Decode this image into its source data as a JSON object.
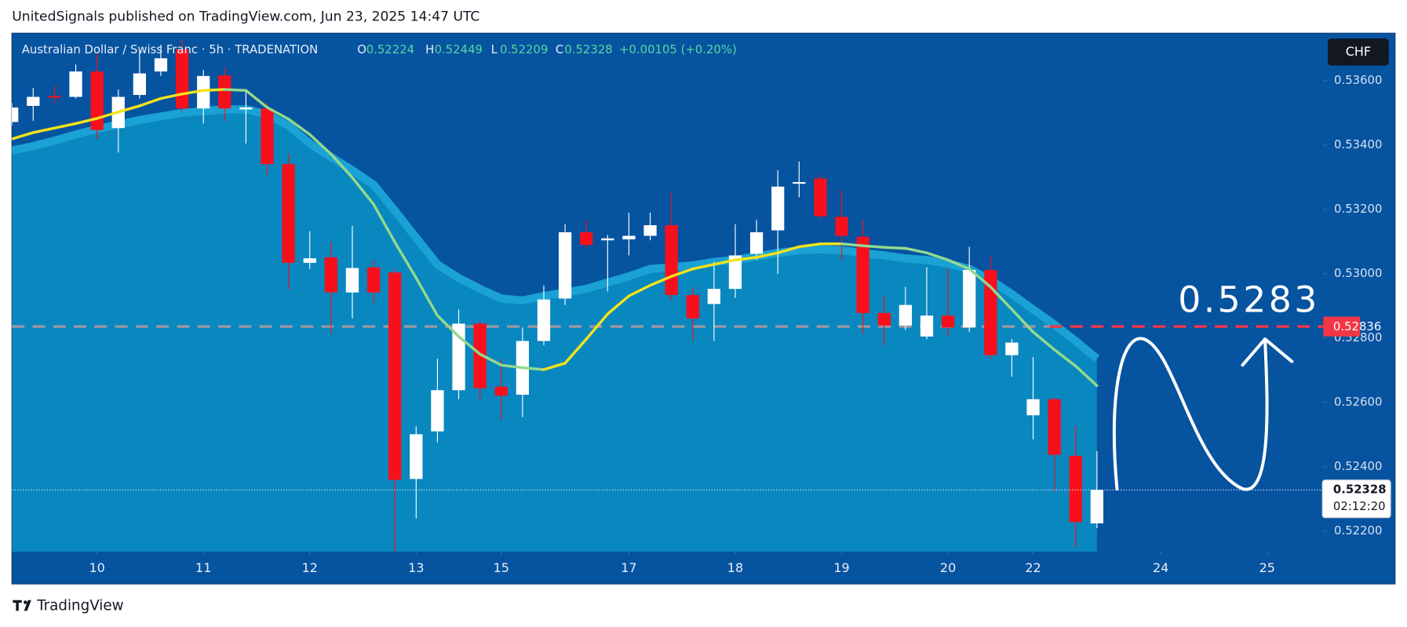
{
  "header": {
    "text": "UnitedSignals published on TradingView.com, Jun 23, 2025 14:47 UTC"
  },
  "footer": {
    "brand": "TradingView"
  },
  "chart_data": {
    "type": "candlestick",
    "symbol": "Australian Dollar / Swiss Franc · 5h · TRADENATION",
    "ohlc_labels": {
      "open": "O",
      "high": "H",
      "low": "L",
      "close": "C"
    },
    "change_label": "+0.00105 (+0.20%)",
    "currency": "CHF",
    "open": [
      0.53472,
      0.53522,
      0.53553,
      0.5355,
      0.53629,
      0.53453,
      0.53556,
      0.53629,
      0.53698,
      0.53514,
      0.53617,
      0.53511,
      0.53514,
      0.53341,
      0.53034,
      0.53051,
      0.52942,
      0.5302,
      0.53004,
      0.52362,
      0.5251,
      0.52638,
      0.52845,
      0.52649,
      0.52624,
      0.52791,
      0.52923,
      0.53129,
      0.53104,
      0.53107,
      0.53118,
      0.53151,
      0.52934,
      0.52906,
      0.52953,
      0.53062,
      0.53135,
      0.5328,
      0.53296,
      0.53177,
      0.53115,
      0.52878,
      0.52839,
      0.52805,
      0.5287,
      0.52833,
      0.53012,
      0.52747,
      0.5256,
      0.5261,
      0.52434,
      0.52224
    ],
    "close": [
      0.53517,
      0.5355,
      0.53548,
      0.53629,
      0.53447,
      0.5355,
      0.53623,
      0.5367,
      0.53514,
      0.53615,
      0.53514,
      0.53517,
      0.53341,
      0.53034,
      0.53048,
      0.52942,
      0.53018,
      0.52942,
      0.52359,
      0.52501,
      0.52638,
      0.52845,
      0.52644,
      0.52621,
      0.52791,
      0.5292,
      0.53129,
      0.5309,
      0.5311,
      0.53118,
      0.53151,
      0.52934,
      0.52861,
      0.52953,
      0.53057,
      0.53129,
      0.53271,
      0.53285,
      0.53179,
      0.53118,
      0.52878,
      0.52839,
      0.52903,
      0.5287,
      0.52833,
      0.53012,
      0.52747,
      0.52786,
      0.5261,
      0.52437,
      0.52228,
      0.52328
    ],
    "high": [
      0.53531,
      0.53578,
      0.53587,
      0.53651,
      0.53684,
      0.53573,
      0.53698,
      0.53712,
      0.53726,
      0.53634,
      0.53642,
      0.53573,
      0.53531,
      0.53372,
      0.53132,
      0.53098,
      0.53149,
      0.53043,
      0.53015,
      0.52526,
      0.52736,
      0.52889,
      0.52853,
      0.52736,
      0.52833,
      0.52964,
      0.53154,
      0.53168,
      0.53121,
      0.5319,
      0.5319,
      0.53252,
      0.52959,
      0.53037,
      0.53154,
      0.53168,
      0.53322,
      0.53349,
      0.53308,
      0.5326,
      0.53168,
      0.52931,
      0.52959,
      0.5302,
      0.53015,
      0.53084,
      0.53057,
      0.52797,
      0.52741,
      0.52616,
      0.52526,
      0.52449
    ],
    "low": [
      0.53461,
      0.53475,
      0.53531,
      0.53545,
      0.53419,
      0.53377,
      0.53545,
      0.53615,
      0.53503,
      0.53467,
      0.53475,
      0.53405,
      0.53308,
      0.52951,
      0.53015,
      0.52814,
      0.52861,
      0.52909,
      0.52136,
      0.52239,
      0.52476,
      0.5261,
      0.5261,
      0.52546,
      0.52554,
      0.52778,
      0.52903,
      0.53079,
      0.52945,
      0.53057,
      0.53104,
      0.52917,
      0.52791,
      0.52791,
      0.52925,
      0.53043,
      0.52999,
      0.53238,
      0.53171,
      0.53043,
      0.52814,
      0.52778,
      0.52825,
      0.52797,
      0.52805,
      0.52819,
      0.52736,
      0.5268,
      0.52485,
      0.52323,
      0.5215,
      0.52209
    ],
    "up_color": "#ffffff",
    "down_color": "#f7101c",
    "series": [
      {
        "type": "line",
        "color_up": "#f3e219",
        "color_down": "#92d98c",
        "values": [
          0.53419,
          0.53439,
          0.53453,
          0.53467,
          0.53483,
          0.53503,
          0.53522,
          0.53545,
          0.53559,
          0.5357,
          0.53573,
          0.5357,
          0.53517,
          0.53481,
          0.53433,
          0.53372,
          0.53299,
          0.53216,
          0.53098,
          0.52987,
          0.5287,
          0.52805,
          0.5275,
          0.52716,
          0.52708,
          0.52702,
          0.52722,
          0.52797,
          0.52875,
          0.52931,
          0.52964,
          0.52992,
          0.53015,
          0.53029,
          0.53043,
          0.53051,
          0.53065,
          0.53084,
          0.53093,
          0.53093,
          0.53087,
          0.53082,
          0.53079,
          0.53065,
          0.53043,
          0.53015,
          0.52959,
          0.52889,
          0.52819,
          0.52764,
          0.52713,
          0.52652
        ]
      },
      {
        "type": "area",
        "color": "#0987bf",
        "edge_color": "#1aa2d4",
        "values": [
          0.53383,
          0.53397,
          0.53414,
          0.53433,
          0.5345,
          0.53464,
          0.53478,
          0.53489,
          0.535,
          0.53506,
          0.53511,
          0.53511,
          0.53495,
          0.53461,
          0.53405,
          0.53363,
          0.53322,
          0.53277,
          0.53196,
          0.53112,
          0.53029,
          0.52987,
          0.52953,
          0.52923,
          0.52917,
          0.52931,
          0.52942,
          0.52953,
          0.52973,
          0.52992,
          0.53015,
          0.5302,
          0.53026,
          0.53037,
          0.53043,
          0.53054,
          0.53065,
          0.53073,
          0.53076,
          0.53073,
          0.53065,
          0.53057,
          0.53048,
          0.53043,
          0.53032,
          0.53015,
          0.52981,
          0.52937,
          0.52889,
          0.52842,
          0.52791,
          0.52736
        ]
      }
    ],
    "ylim": [
      0.52136,
      0.53748
    ],
    "yticks": [
      {
        "value": 0.522,
        "label": "0.52200"
      },
      {
        "value": 0.524,
        "label": "0.52400"
      },
      {
        "value": 0.526,
        "label": "0.52600"
      },
      {
        "value": 0.528,
        "label": "0.52800"
      },
      {
        "value": 0.53,
        "label": "0.53000"
      },
      {
        "value": 0.532,
        "label": "0.53200"
      },
      {
        "value": 0.534,
        "label": "0.53400"
      },
      {
        "value": 0.536,
        "label": "0.53600"
      }
    ],
    "xlim": [
      0,
      61.64
    ],
    "xticks": [
      {
        "value": 4,
        "label": "10"
      },
      {
        "value": 9,
        "label": "11"
      },
      {
        "value": 14,
        "label": "12"
      },
      {
        "value": 19,
        "label": "13"
      },
      {
        "value": 23,
        "label": "15"
      },
      {
        "value": 29,
        "label": "17"
      },
      {
        "value": 34,
        "label": "18"
      },
      {
        "value": 39,
        "label": "19"
      },
      {
        "value": 44,
        "label": "20"
      },
      {
        "value": 48,
        "label": "22"
      },
      {
        "value": 54,
        "label": "24"
      },
      {
        "value": 59,
        "label": "25"
      }
    ],
    "hlines": [
      {
        "value": 0.52836,
        "color": "#f23645"
      }
    ],
    "last_price": {
      "value": 0.52328,
      "countdown": "02:12:20"
    },
    "annotation": {
      "text": "0.5283"
    }
  }
}
